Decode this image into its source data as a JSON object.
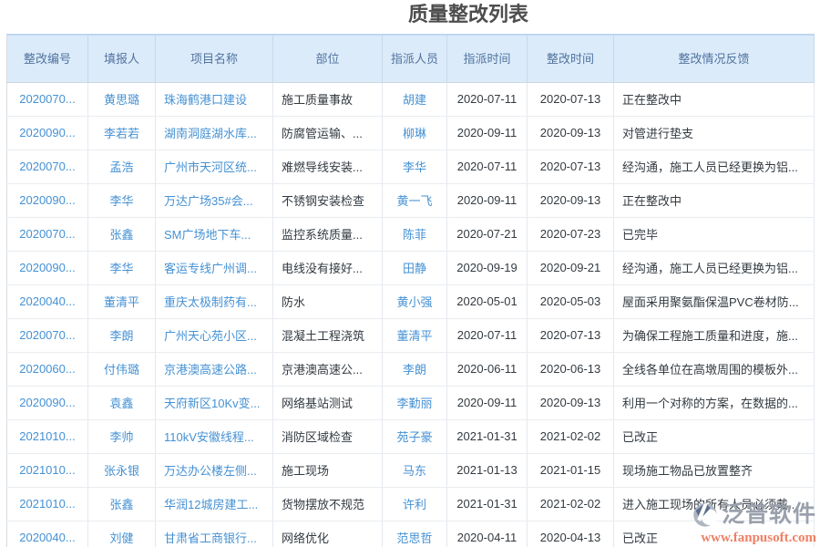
{
  "page": {
    "title": "质量整改列表"
  },
  "table": {
    "columns": [
      {
        "key": "rectify-id",
        "label": "整改编号",
        "align": "center",
        "link": true
      },
      {
        "key": "filler",
        "label": "填报人",
        "align": "center",
        "link": true
      },
      {
        "key": "project-name",
        "label": "项目名称",
        "align": "left",
        "link": true
      },
      {
        "key": "part",
        "label": "部位",
        "align": "left",
        "link": false
      },
      {
        "key": "assignee",
        "label": "指派人员",
        "align": "center",
        "link": true
      },
      {
        "key": "assign-time",
        "label": "指派时间",
        "align": "center",
        "link": false
      },
      {
        "key": "rectify-time",
        "label": "整改时间",
        "align": "center",
        "link": false
      },
      {
        "key": "feedback",
        "label": "整改情况反馈",
        "align": "left",
        "link": false
      }
    ],
    "rows": [
      [
        "2020070...",
        "黄思璐",
        "珠海鹤港口建设",
        "施工质量事故",
        "胡建",
        "2020-07-11",
        "2020-07-13",
        "正在整改中"
      ],
      [
        "2020090...",
        "李若若",
        "湖南洞庭湖水库...",
        "防腐管运输、...",
        "柳琳",
        "2020-09-11",
        "2020-09-13",
        "对管进行垫支"
      ],
      [
        "2020070...",
        "孟浩",
        "广州市天河区统...",
        "难燃导线安装...",
        "李华",
        "2020-07-11",
        "2020-07-13",
        "经沟通，施工人员已经更换为铝..."
      ],
      [
        "2020090...",
        "李华",
        "万达广场35#会...",
        "不锈钢安装检查",
        "黄一飞",
        "2020-09-11",
        "2020-09-13",
        "正在整改中"
      ],
      [
        "2020070...",
        "张鑫",
        "SM广场地下车...",
        "监控系统质量...",
        "陈菲",
        "2020-07-21",
        "2020-07-23",
        "已完毕"
      ],
      [
        "2020090...",
        "李华",
        "客运专线广州调...",
        "电线没有接好...",
        "田静",
        "2020-09-19",
        "2020-09-21",
        "经沟通，施工人员已经更换为铝..."
      ],
      [
        "2020040...",
        "董清平",
        "重庆太极制药有...",
        "防水",
        "黄小强",
        "2020-05-01",
        "2020-05-03",
        "屋面采用聚氨酯保温PVC卷材防..."
      ],
      [
        "2020070...",
        "李朗",
        "广州天心苑小区...",
        "混凝土工程浇筑",
        "董清平",
        "2020-07-11",
        "2020-07-13",
        "为确保工程施工质量和进度，施..."
      ],
      [
        "2020060...",
        "付伟璐",
        "京港澳高速公路...",
        "京港澳高速公...",
        "李朗",
        "2020-06-11",
        "2020-06-13",
        "全线各单位在高墩周围的模板外..."
      ],
      [
        "2020090...",
        "袁鑫",
        "天府新区10Kv变...",
        "网络基站测试",
        "李勤丽",
        "2020-09-11",
        "2020-09-13",
        "利用一个对称的方案，在数据的..."
      ],
      [
        "2021010...",
        "李帅",
        "110kV安徽线程...",
        "消防区域检查",
        "苑子豪",
        "2021-01-31",
        "2021-02-02",
        "已改正"
      ],
      [
        "2021010...",
        "张永银",
        "万达办公楼左侧...",
        "施工现场",
        "马东",
        "2021-01-13",
        "2021-01-15",
        "现场施工物品已放置整齐"
      ],
      [
        "2021010...",
        "张鑫",
        "华润12城房建工...",
        "货物摆放不规范",
        "许利",
        "2021-01-31",
        "2021-02-02",
        "进入施工现场的所有人员必须戴..."
      ],
      [
        "2020040...",
        "刘健",
        "甘肃省工商银行...",
        "网络优化",
        "范思哲",
        "2020-04-11",
        "2020-04-13",
        "已改正"
      ]
    ]
  },
  "watermark": {
    "brand": "泛普软件",
    "url": "www.fanpusoft.com"
  },
  "colors": {
    "link_blue": "#4591d3",
    "header_bg": "#dcebfa",
    "header_text": "#50739e",
    "body_text": "#333a40",
    "wm_brand": "#9aa1ac",
    "wm_url": "#ef8064"
  }
}
